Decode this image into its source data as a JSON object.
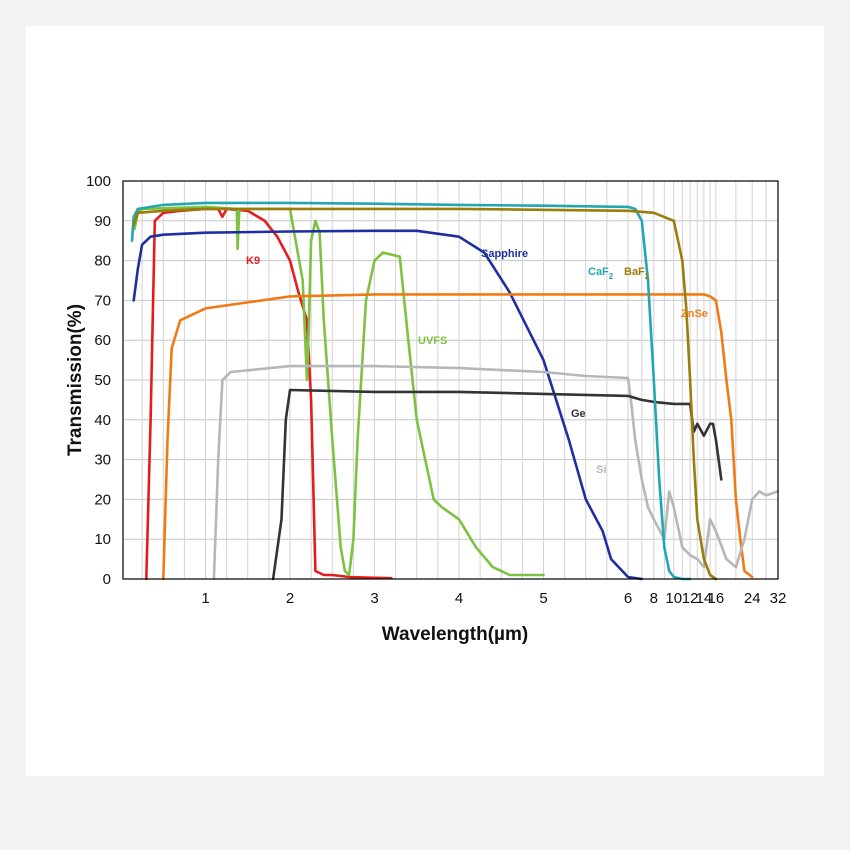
{
  "chart_data": {
    "type": "line",
    "xlabel": "Wavelength(µm)",
    "ylabel": "Transmission(%)",
    "xscale": "piecewise: linear 0–6 µm, log 6–32 µm",
    "ylim": [
      0,
      100
    ],
    "grid": true,
    "legend": "inline labels on curves",
    "y_ticks": [
      "0",
      "10",
      "20",
      "30",
      "40",
      "50",
      "60",
      "70",
      "80",
      "90",
      "100"
    ],
    "x_ticks": [
      "1",
      "2",
      "3",
      "4",
      "5",
      "6",
      "8",
      "10",
      "12",
      "14",
      "16",
      "24",
      "32"
    ],
    "series": [
      {
        "name": "K9",
        "color": "#e31d1d",
        "x": [
          0.3,
          0.35,
          0.4,
          0.5,
          0.7,
          1.0,
          1.15,
          1.2,
          1.25,
          1.5,
          1.7,
          1.85,
          2.0,
          2.1,
          2.2,
          2.25,
          2.3,
          2.4,
          2.5,
          2.7,
          3.0,
          3.2
        ],
        "y": [
          0,
          40,
          90,
          92,
          92.5,
          93,
          93,
          91,
          93,
          92.5,
          90,
          86,
          80,
          72,
          65,
          45,
          2,
          1,
          1,
          0.5,
          0.3,
          0.2
        ]
      },
      {
        "name": "UVFS",
        "color": "#7dc242",
        "x": [
          0.16,
          0.2,
          0.25,
          1.0,
          1.37,
          1.38,
          1.4,
          2.0,
          2.15,
          2.2,
          2.22,
          2.25,
          2.3,
          2.35,
          2.4,
          2.5,
          2.6,
          2.65,
          2.7,
          2.75,
          2.8,
          2.9,
          3.0,
          3.1,
          3.3,
          3.4,
          3.5,
          3.6,
          3.7,
          3.8,
          4.0,
          4.2,
          4.4,
          4.6,
          4.8,
          5.0
        ],
        "y": [
          88,
          92,
          93,
          93.5,
          93,
          83,
          93,
          93,
          75,
          50,
          62,
          85,
          90,
          87,
          65,
          35,
          8,
          2,
          1,
          10,
          35,
          70,
          80,
          82,
          81,
          60,
          40,
          30,
          20,
          18,
          15,
          8,
          3,
          1,
          1,
          1
        ]
      },
      {
        "name": "Sapphire",
        "color": "#1f2ea0",
        "x": [
          0.15,
          0.2,
          0.25,
          0.35,
          0.5,
          1.0,
          2.0,
          3.0,
          3.5,
          4.0,
          4.3,
          4.6,
          5.0,
          5.3,
          5.5,
          5.7,
          5.8,
          6.0,
          7.0
        ],
        "y": [
          70,
          78,
          84,
          86,
          86.5,
          87,
          87.3,
          87.5,
          87.5,
          86,
          82,
          72,
          55,
          35,
          20,
          12,
          5,
          0.5,
          0
        ]
      },
      {
        "name": "ZnSe",
        "color": "#f07b16",
        "x": [
          0.5,
          0.55,
          0.6,
          0.7,
          1.0,
          2.0,
          3.0,
          4.0,
          5.0,
          6.0,
          8.0,
          10.0,
          12.0,
          14.0,
          15.0,
          16.0,
          17.0,
          18.0,
          19.0,
          20.0,
          21.0,
          22.0,
          24.0
        ],
        "y": [
          0,
          35,
          58,
          65,
          68,
          71,
          71.5,
          71.5,
          71.5,
          71.5,
          71.5,
          71.5,
          71.5,
          71.5,
          71,
          70,
          62,
          50,
          40,
          20,
          10,
          2,
          0.5
        ]
      },
      {
        "name": "Si",
        "color": "#b7b7b7",
        "x": [
          1.1,
          1.15,
          1.2,
          1.3,
          2.0,
          3.0,
          4.0,
          5.0,
          5.5,
          6.0,
          6.2,
          6.5,
          7.0,
          7.5,
          8.0,
          9.0,
          9.5,
          10.0,
          11.0,
          12.0,
          13.0,
          14.0,
          15.0,
          16.0,
          18.0,
          20.0,
          22.0,
          24.0,
          26.0,
          28.0,
          32.0
        ],
        "y": [
          0,
          30,
          50,
          52,
          53.5,
          53.5,
          53,
          52,
          51,
          50.5,
          45,
          35,
          25,
          18,
          15,
          10,
          22,
          18,
          8,
          6,
          5,
          3,
          15,
          12,
          5,
          3,
          10,
          20,
          22,
          21,
          22
        ]
      },
      {
        "name": "Ge",
        "color": "#333333",
        "x": [
          1.8,
          1.9,
          1.95,
          2.0,
          3.0,
          4.0,
          5.0,
          6.0,
          7.0,
          8.0,
          10.0,
          11.0,
          12.0,
          12.5,
          13.0,
          14.0,
          15.0,
          15.5,
          16.0,
          16.5,
          17.0
        ],
        "y": [
          0,
          15,
          40,
          47.5,
          47,
          47,
          46.5,
          46,
          45,
          44.5,
          44,
          44,
          44,
          37,
          39,
          36,
          39,
          39,
          35,
          30,
          25
        ]
      },
      {
        "name": "CaF2",
        "color": "#22a7b2",
        "x": [
          0.13,
          0.15,
          0.2,
          0.5,
          1.0,
          2.0,
          3.0,
          4.0,
          5.0,
          6.0,
          6.5,
          7.0,
          7.5,
          8.0,
          8.5,
          9.0,
          9.5,
          10.0,
          11.0,
          12.0
        ],
        "y": [
          85,
          91,
          93,
          94,
          94.5,
          94.5,
          94.3,
          94,
          93.8,
          93.5,
          93,
          90,
          75,
          50,
          25,
          8,
          2,
          0.5,
          0,
          0
        ]
      },
      {
        "name": "BaF2",
        "color": "#9a7d0a",
        "x": [
          0.15,
          0.2,
          0.5,
          1.0,
          2.0,
          4.0,
          6.0,
          8.0,
          10.0,
          11.0,
          11.5,
          12.0,
          12.5,
          13.0,
          14.0,
          15.0,
          16.0
        ],
        "y": [
          89,
          92,
          92.5,
          93,
          93,
          93,
          92.5,
          92,
          90,
          80,
          68,
          50,
          30,
          15,
          5,
          1,
          0
        ]
      }
    ],
    "annotations": [
      {
        "text": "K9",
        "color": "#e31d1d"
      },
      {
        "text": "UVFS",
        "color": "#7dc242"
      },
      {
        "text": "Sapphire",
        "color": "#1f2ea0"
      },
      {
        "text": "CaF",
        "sub": "2",
        "color": "#22a7b2"
      },
      {
        "text": "BaF",
        "sub": "2",
        "color": "#9a7d0a"
      },
      {
        "text": "ZnSe",
        "color": "#f07b16"
      },
      {
        "text": "Ge",
        "color": "#333333"
      },
      {
        "text": "Si",
        "color": "#b7b7b7"
      }
    ]
  }
}
